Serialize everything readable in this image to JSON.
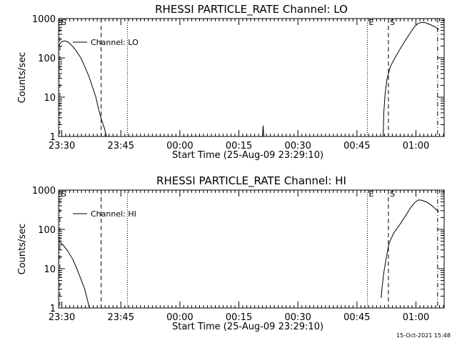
{
  "chart_data": [
    {
      "type": "line",
      "title": "RHESSI PARTICLE_RATE Channel: LO",
      "xlabel": "Start Time (25-Aug-09 23:29:10)",
      "ylabel": "Counts/sec",
      "yscale": "log",
      "ylim": [
        1,
        1000
      ],
      "xlim_minutes_after_start": [
        0,
        98
      ],
      "x_tick_labels": [
        "23:30",
        "23:45",
        "00:00",
        "00:15",
        "00:30",
        "00:45",
        "01:00"
      ],
      "y_tick_labels": [
        "1",
        "10",
        "100",
        "1000"
      ],
      "legend": "Channel: LO",
      "legend_position": "top-left",
      "markers": [
        {
          "label": "S",
          "time": "23:29:30",
          "style": "dash-dot"
        },
        {
          "label": "",
          "time": "23:40:00",
          "style": "dashed"
        },
        {
          "label": "",
          "time": "23:46:40",
          "style": "dotted"
        },
        {
          "label": "E",
          "time": "00:47:40",
          "style": "dotted"
        },
        {
          "label": "S",
          "time": "00:53:00",
          "style": "dashed"
        },
        {
          "label": "",
          "time": "01:05:30",
          "style": "dash-dot"
        }
      ],
      "series": [
        {
          "name": "Channel: LO",
          "segments": [
            [
              [
                "23:29:10",
                200
              ],
              [
                "23:29:40",
                240
              ],
              [
                "23:30:10",
                265
              ],
              [
                "23:30:50",
                270
              ],
              [
                "23:31:40",
                250
              ],
              [
                "23:32:40",
                200
              ],
              [
                "23:33:40",
                150
              ],
              [
                "23:34:50",
                100
              ],
              [
                "23:35:50",
                60
              ],
              [
                "23:36:50",
                35
              ],
              [
                "23:37:40",
                20
              ],
              [
                "23:38:40",
                10
              ],
              [
                "23:39:20",
                5
              ],
              [
                "23:40:10",
                2.5
              ],
              [
                "23:40:50",
                1.6
              ],
              [
                "23:41:20",
                1
              ]
            ],
            [
              [
                "00:21:00",
                1
              ],
              [
                "00:21:10",
                1.9
              ],
              [
                "00:21:20",
                1
              ]
            ],
            [
              [
                "00:51:40",
                1
              ],
              [
                "00:51:50",
                4
              ],
              [
                "00:52:10",
                12
              ],
              [
                "00:52:40",
                30
              ],
              [
                "00:53:30",
                60
              ],
              [
                "00:54:40",
                100
              ],
              [
                "00:56:00",
                170
              ],
              [
                "00:57:00",
                250
              ],
              [
                "00:58:20",
                400
              ],
              [
                "00:59:30",
                600
              ],
              [
                "01:00:30",
                750
              ],
              [
                "01:01:30",
                800
              ],
              [
                "01:02:30",
                780
              ],
              [
                "01:03:40",
                700
              ],
              [
                "01:05:00",
                600
              ],
              [
                "01:05:50",
                530
              ]
            ]
          ]
        }
      ]
    },
    {
      "type": "line",
      "title": "RHESSI PARTICLE_RATE Channel: HI",
      "xlabel": "Start Time (25-Aug-09 23:29:10)",
      "ylabel": "Counts/sec",
      "yscale": "log",
      "ylim": [
        1,
        1000
      ],
      "xlim_minutes_after_start": [
        0,
        98
      ],
      "x_tick_labels": [
        "23:30",
        "23:45",
        "00:00",
        "00:15",
        "00:30",
        "00:45",
        "01:00"
      ],
      "y_tick_labels": [
        "1",
        "10",
        "100",
        "1000"
      ],
      "legend": "Channel: HI",
      "legend_position": "top-left",
      "markers": [
        {
          "label": "S",
          "time": "23:29:30",
          "style": "dash-dot"
        },
        {
          "label": "",
          "time": "23:40:00",
          "style": "dashed"
        },
        {
          "label": "",
          "time": "23:46:40",
          "style": "dotted"
        },
        {
          "label": "E",
          "time": "00:47:40",
          "style": "dotted"
        },
        {
          "label": "S",
          "time": "00:53:00",
          "style": "dashed"
        },
        {
          "label": "",
          "time": "01:05:30",
          "style": "dash-dot"
        }
      ],
      "series": [
        {
          "name": "Channel: HI",
          "segments": [
            [
              [
                "23:29:10",
                50
              ],
              [
                "23:30:20",
                40
              ],
              [
                "23:31:30",
                28
              ],
              [
                "23:32:50",
                17
              ],
              [
                "23:34:00",
                9
              ],
              [
                "23:35:00",
                5
              ],
              [
                "23:35:50",
                3
              ],
              [
                "23:36:30",
                1.6
              ],
              [
                "23:37:00",
                1
              ]
            ],
            [
              [
                "00:51:10",
                1.8
              ],
              [
                "00:51:20",
                3
              ],
              [
                "00:51:50",
                8
              ],
              [
                "00:52:30",
                20
              ],
              [
                "00:53:10",
                45
              ],
              [
                "00:54:20",
                80
              ],
              [
                "00:55:50",
                130
              ],
              [
                "00:57:20",
                220
              ],
              [
                "00:58:40",
                360
              ],
              [
                "00:59:50",
                500
              ],
              [
                "01:00:40",
                560
              ],
              [
                "01:01:30",
                550
              ],
              [
                "01:02:40",
                500
              ],
              [
                "01:03:50",
                420
              ],
              [
                "01:05:00",
                330
              ],
              [
                "01:05:50",
                280
              ]
            ]
          ]
        }
      ]
    }
  ],
  "footer_stamp": "15-Oct-2021 15:48"
}
